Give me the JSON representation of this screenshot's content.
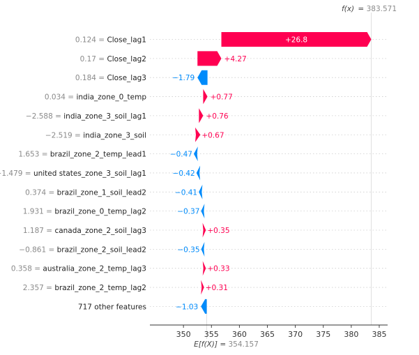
{
  "chart_data": {
    "type": "waterfall",
    "fx_label": "f(x)",
    "fx_value": "383.571",
    "base_label": "E[f(X)]",
    "base_value": "354.157",
    "base": 354.157,
    "final": 383.571,
    "xlim": [
      344,
      386.5
    ],
    "xticks": [
      350,
      355,
      360,
      365,
      370,
      375,
      380,
      385
    ],
    "colors": {
      "positive": "#ff0051",
      "negative": "#008bfb"
    },
    "features": [
      {
        "value": "0.124",
        "name": "Close_lag1",
        "contribution": 26.8,
        "label": "+26.8"
      },
      {
        "value": "0.17",
        "name": "Close_lag2",
        "contribution": 4.27,
        "label": "+4.27"
      },
      {
        "value": "0.184",
        "name": "Close_lag3",
        "contribution": -1.79,
        "label": "−1.79"
      },
      {
        "value": "0.034",
        "name": "india_zone_0_temp",
        "contribution": 0.77,
        "label": "+0.77"
      },
      {
        "value": "−2.588",
        "name": "india_zone_3_soil_lag1",
        "contribution": 0.76,
        "label": "+0.76"
      },
      {
        "value": "−2.519",
        "name": "india_zone_3_soil",
        "contribution": 0.67,
        "label": "+0.67"
      },
      {
        "value": "1.653",
        "name": "brazil_zone_2_temp_lead1",
        "contribution": -0.47,
        "label": "−0.47"
      },
      {
        "value": "−1.479",
        "name": "united states_zone_3_soil_lag1",
        "contribution": -0.42,
        "label": "−0.42"
      },
      {
        "value": "0.374",
        "name": "brazil_zone_1_soil_lead2",
        "contribution": -0.41,
        "label": "−0.41"
      },
      {
        "value": "1.931",
        "name": "brazil_zone_0_temp_lag2",
        "contribution": -0.37,
        "label": "−0.37"
      },
      {
        "value": "1.187",
        "name": "canada_zone_2_soil_lag3",
        "contribution": 0.35,
        "label": "+0.35"
      },
      {
        "value": "−0.861",
        "name": "brazil_zone_2_soil_lead2",
        "contribution": -0.35,
        "label": "−0.35"
      },
      {
        "value": "0.358",
        "name": "australia_zone_2_temp_lag3",
        "contribution": 0.33,
        "label": "+0.33"
      },
      {
        "value": "2.357",
        "name": "brazil_zone_2_temp_lag2",
        "contribution": 0.31,
        "label": "+0.31"
      },
      {
        "value": "",
        "name": "717 other features",
        "contribution": -1.03,
        "label": "−1.03"
      }
    ]
  }
}
